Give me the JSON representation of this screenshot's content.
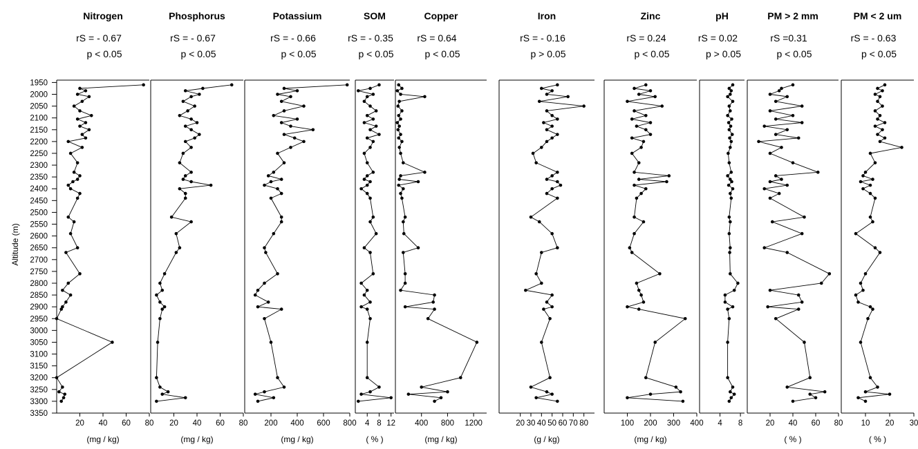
{
  "figure": {
    "y_axis_label": "Altitude  (m)",
    "y_ticks": [
      1950,
      2000,
      2050,
      2100,
      2150,
      2200,
      2250,
      2300,
      2350,
      2400,
      2450,
      2500,
      2550,
      2600,
      2650,
      2700,
      2750,
      2800,
      2850,
      2900,
      2950,
      3000,
      3050,
      3100,
      3150,
      3200,
      3250,
      3300,
      3350
    ],
    "ylim": [
      1940,
      3350
    ],
    "grid": false
  },
  "chart_data": [
    {
      "type": "line",
      "title": "Nitrogen",
      "r_label": "rS = - 0.67",
      "p_label": "p < 0.05",
      "unit_label": "(mg / kg)",
      "xlim": [
        0,
        80
      ],
      "x_ticks": [
        20,
        40,
        60,
        80
      ],
      "x_tick_labels": [
        "20",
        "40",
        "60",
        "80"
      ],
      "x": [
        75,
        20,
        25,
        18,
        28,
        22,
        15,
        20,
        30,
        18,
        25,
        20,
        28,
        22,
        25,
        10,
        22,
        12,
        18,
        15,
        20,
        18,
        14,
        10,
        12,
        20,
        18,
        10,
        15,
        12,
        18,
        8,
        20,
        10,
        5,
        12,
        8,
        5,
        4,
        0,
        48,
        0,
        5,
        2,
        7,
        6,
        4
      ],
      "y": [
        1960,
        1975,
        1985,
        2000,
        2010,
        2030,
        2050,
        2070,
        2090,
        2105,
        2120,
        2135,
        2150,
        2170,
        2185,
        2200,
        2225,
        2250,
        2290,
        2330,
        2345,
        2360,
        2370,
        2385,
        2400,
        2420,
        2440,
        2520,
        2540,
        2590,
        2650,
        2670,
        2760,
        2800,
        2830,
        2850,
        2880,
        2900,
        2910,
        2950,
        3050,
        3200,
        3240,
        3260,
        3270,
        3285,
        3300
      ]
    },
    {
      "type": "line",
      "title": "Phosphorus",
      "r_label": "rS = - 0.67",
      "p_label": "p < 0.05",
      "unit_label": "(mg / kg)",
      "xlim": [
        0,
        80
      ],
      "x_ticks": [
        20,
        40,
        60,
        80
      ],
      "x_tick_labels": [
        "20",
        "40",
        "60",
        "80"
      ],
      "x": [
        70,
        45,
        30,
        42,
        35,
        28,
        38,
        32,
        25,
        35,
        40,
        30,
        35,
        42,
        38,
        30,
        35,
        28,
        25,
        35,
        30,
        28,
        35,
        52,
        25,
        30,
        30,
        18,
        35,
        22,
        25,
        22,
        12,
        8,
        10,
        5,
        8,
        12,
        10,
        8,
        6,
        5,
        8,
        15,
        10,
        30,
        5
      ],
      "y": [
        1960,
        1975,
        1985,
        2000,
        2010,
        2030,
        2050,
        2070,
        2090,
        2105,
        2120,
        2135,
        2150,
        2170,
        2185,
        2200,
        2225,
        2250,
        2290,
        2330,
        2345,
        2360,
        2370,
        2385,
        2400,
        2420,
        2440,
        2520,
        2540,
        2590,
        2650,
        2670,
        2760,
        2800,
        2830,
        2850,
        2880,
        2900,
        2910,
        2950,
        3050,
        3200,
        3240,
        3260,
        3270,
        3285,
        3300
      ]
    },
    {
      "type": "line",
      "title": "Potassium",
      "r_label": "rS = - 0.66",
      "p_label": "p < 0.05",
      "unit_label": "(mg / kg)",
      "xlim": [
        0,
        800
      ],
      "x_ticks": [
        200,
        400,
        600,
        800
      ],
      "x_tick_labels": [
        "200",
        "400",
        "600",
        "800"
      ],
      "x": [
        780,
        300,
        400,
        250,
        350,
        280,
        450,
        300,
        220,
        400,
        280,
        350,
        520,
        300,
        380,
        450,
        350,
        250,
        300,
        220,
        180,
        280,
        200,
        150,
        250,
        280,
        200,
        280,
        280,
        220,
        150,
        160,
        250,
        150,
        100,
        80,
        180,
        100,
        280,
        150,
        200,
        250,
        300,
        150,
        80,
        220,
        100
      ],
      "y": [
        1960,
        1975,
        1985,
        2000,
        2010,
        2030,
        2050,
        2070,
        2090,
        2105,
        2120,
        2135,
        2150,
        2170,
        2185,
        2200,
        2225,
        2250,
        2290,
        2330,
        2345,
        2360,
        2370,
        2385,
        2400,
        2420,
        2440,
        2520,
        2540,
        2590,
        2650,
        2670,
        2760,
        2800,
        2830,
        2850,
        2880,
        2900,
        2910,
        2950,
        3050,
        3200,
        3240,
        3260,
        3270,
        3285,
        3300
      ]
    },
    {
      "type": "line",
      "title": "SOM",
      "r_label": "rS = - 0.35",
      "p_label": "p < 0.05",
      "unit_label": "( % )",
      "xlim": [
        0,
        13
      ],
      "x_ticks": [
        4,
        8,
        12
      ],
      "x_tick_labels": [
        "4",
        "8",
        "12"
      ],
      "x": [
        8,
        5,
        1,
        6,
        4,
        3,
        5,
        7,
        4,
        6,
        3,
        7,
        5,
        8,
        4,
        6,
        5,
        3,
        4,
        6,
        4,
        3,
        5,
        4,
        2,
        4,
        5,
        6,
        5,
        7,
        3,
        5,
        6,
        2,
        4,
        3,
        5,
        2,
        4,
        5,
        4,
        4,
        8,
        5,
        2,
        12,
        1
      ],
      "y": [
        1960,
        1975,
        1985,
        2000,
        2010,
        2030,
        2050,
        2070,
        2090,
        2105,
        2120,
        2135,
        2150,
        2170,
        2185,
        2200,
        2225,
        2250,
        2290,
        2330,
        2345,
        2360,
        2370,
        2385,
        2400,
        2420,
        2440,
        2520,
        2540,
        2590,
        2650,
        2670,
        2760,
        2800,
        2830,
        2850,
        2880,
        2900,
        2910,
        2950,
        3050,
        3200,
        3240,
        3260,
        3270,
        3285,
        3300
      ]
    },
    {
      "type": "line",
      "title": "Copper",
      "r_label": "rS = 0.64",
      "p_label": "p < 0.05",
      "unit_label": "(mg / kg)",
      "xlim": [
        0,
        1400
      ],
      "x_ticks": [
        400,
        800,
        1200
      ],
      "x_tick_labels": [
        "400",
        "800",
        "1200"
      ],
      "x": [
        50,
        100,
        30,
        80,
        450,
        60,
        40,
        100,
        50,
        80,
        30,
        60,
        40,
        80,
        50,
        100,
        60,
        80,
        120,
        450,
        80,
        60,
        350,
        50,
        120,
        80,
        100,
        150,
        120,
        130,
        350,
        120,
        150,
        150,
        80,
        600,
        580,
        150,
        600,
        500,
        1250,
        1000,
        400,
        800,
        200,
        700,
        600
      ],
      "y": [
        1960,
        1975,
        1985,
        2000,
        2010,
        2030,
        2050,
        2070,
        2090,
        2105,
        2120,
        2135,
        2150,
        2170,
        2185,
        2200,
        2225,
        2250,
        2290,
        2330,
        2345,
        2360,
        2370,
        2385,
        2400,
        2420,
        2440,
        2520,
        2540,
        2590,
        2650,
        2670,
        2760,
        2800,
        2830,
        2850,
        2880,
        2900,
        2910,
        2950,
        3050,
        3200,
        3240,
        3260,
        3270,
        3285,
        3300
      ]
    },
    {
      "type": "line",
      "title": "Iron",
      "r_label": "rS = - 0.16",
      "p_label": "p > 0.05",
      "unit_label": "(g / kg)",
      "xlim": [
        0,
        90
      ],
      "x_ticks": [
        20,
        30,
        40,
        50,
        60,
        70,
        80
      ],
      "x_tick_labels": [
        "20",
        "30",
        "40",
        "50",
        "60",
        "70",
        "80"
      ],
      "x": [
        55,
        40,
        50,
        45,
        65,
        38,
        80,
        45,
        50,
        55,
        42,
        50,
        45,
        55,
        50,
        45,
        40,
        32,
        35,
        55,
        50,
        45,
        55,
        58,
        50,
        45,
        55,
        30,
        38,
        50,
        55,
        40,
        35,
        40,
        25,
        50,
        45,
        50,
        42,
        48,
        40,
        48,
        30,
        45,
        50,
        35,
        55
      ],
      "y": [
        1960,
        1975,
        1985,
        2000,
        2010,
        2030,
        2050,
        2070,
        2090,
        2105,
        2120,
        2135,
        2150,
        2170,
        2185,
        2200,
        2225,
        2250,
        2290,
        2330,
        2345,
        2360,
        2370,
        2385,
        2400,
        2420,
        2440,
        2520,
        2540,
        2590,
        2650,
        2670,
        2760,
        2800,
        2830,
        2850,
        2880,
        2900,
        2910,
        2950,
        3050,
        3200,
        3240,
        3260,
        3270,
        3285,
        3300
      ]
    },
    {
      "type": "line",
      "title": "Zinc",
      "r_label": "rS = 0.24",
      "p_label": "p < 0.05",
      "unit_label": "(mg / kg)",
      "xlim": [
        0,
        400
      ],
      "x_ticks": [
        100,
        200,
        300,
        400
      ],
      "x_tick_labels": [
        "100",
        "200",
        "300",
        "400"
      ],
      "x": [
        180,
        130,
        200,
        150,
        220,
        100,
        250,
        130,
        180,
        120,
        200,
        140,
        180,
        200,
        120,
        170,
        160,
        120,
        150,
        130,
        280,
        150,
        270,
        130,
        180,
        160,
        140,
        130,
        170,
        130,
        110,
        120,
        240,
        140,
        150,
        160,
        170,
        100,
        150,
        350,
        220,
        180,
        310,
        330,
        200,
        100,
        340
      ],
      "y": [
        1960,
        1975,
        1985,
        2000,
        2010,
        2030,
        2050,
        2070,
        2090,
        2105,
        2120,
        2135,
        2150,
        2170,
        2185,
        2200,
        2225,
        2250,
        2290,
        2330,
        2345,
        2360,
        2370,
        2385,
        2400,
        2420,
        2440,
        2520,
        2540,
        2590,
        2650,
        2670,
        2760,
        2800,
        2830,
        2850,
        2880,
        2900,
        2910,
        2950,
        3050,
        3200,
        3240,
        3260,
        3270,
        3285,
        3300
      ]
    },
    {
      "type": "line",
      "title": "pH",
      "r_label": "rS = 0.02",
      "p_label": "p > 0.05",
      "unit_label": "",
      "xlim": [
        0,
        8.8
      ],
      "x_ticks": [
        4,
        8
      ],
      "x_tick_labels": [
        "4",
        "8"
      ],
      "x": [
        6.5,
        5.8,
        6.2,
        6.0,
        5.5,
        6.5,
        5.8,
        6.0,
        5.5,
        6.3,
        5.7,
        6.1,
        5.8,
        6.4,
        5.9,
        6.2,
        6.0,
        5.6,
        5.8,
        6.2,
        5.5,
        6.0,
        6.3,
        5.7,
        6.5,
        6.0,
        6.2,
        5.8,
        6.0,
        5.8,
        6.0,
        5.9,
        6.0,
        7.5,
        6.8,
        5.0,
        5.0,
        6.5,
        5.5,
        5.8,
        5.5,
        5.5,
        6.5,
        6.0,
        6.8,
        6.2,
        5.8
      ],
      "y": [
        1960,
        1975,
        1985,
        2000,
        2010,
        2030,
        2050,
        2070,
        2090,
        2105,
        2120,
        2135,
        2150,
        2170,
        2185,
        2200,
        2225,
        2250,
        2290,
        2330,
        2345,
        2360,
        2370,
        2385,
        2400,
        2420,
        2440,
        2520,
        2540,
        2590,
        2650,
        2670,
        2760,
        2800,
        2830,
        2850,
        2880,
        2900,
        2910,
        2950,
        3050,
        3200,
        3240,
        3260,
        3270,
        3285,
        3300
      ]
    },
    {
      "type": "line",
      "title": "PM > 2 mm",
      "r_label": "rS =0.31",
      "p_label": "p < 0.05",
      "unit_label": "( % )",
      "xlim": [
        0,
        80
      ],
      "x_ticks": [
        20,
        40,
        60,
        80
      ],
      "x_tick_labels": [
        "20",
        "40",
        "60",
        "80"
      ],
      "x": [
        40,
        30,
        28,
        20,
        35,
        25,
        48,
        20,
        40,
        25,
        48,
        15,
        35,
        25,
        45,
        10,
        30,
        20,
        40,
        62,
        25,
        30,
        20,
        35,
        15,
        28,
        20,
        50,
        22,
        48,
        15,
        35,
        72,
        65,
        20,
        45,
        48,
        18,
        45,
        25,
        50,
        55,
        35,
        68,
        55,
        60,
        40
      ],
      "y": [
        1960,
        1975,
        1985,
        2000,
        2010,
        2030,
        2050,
        2070,
        2090,
        2105,
        2120,
        2135,
        2150,
        2170,
        2185,
        2200,
        2225,
        2250,
        2290,
        2330,
        2345,
        2360,
        2370,
        2385,
        2400,
        2420,
        2440,
        2520,
        2540,
        2590,
        2650,
        2670,
        2760,
        2800,
        2830,
        2850,
        2880,
        2900,
        2910,
        2950,
        3050,
        3200,
        3240,
        3260,
        3270,
        3285,
        3300
      ]
    },
    {
      "type": "line",
      "title": "PM < 2 um",
      "r_label": "rS = - 0.63",
      "p_label": "p < 0.05",
      "unit_label": "( % )",
      "xlim": [
        0,
        30
      ],
      "x_ticks": [
        10,
        20,
        30
      ],
      "x_tick_labels": [
        "10",
        "20",
        "30"
      ],
      "x": [
        18,
        15,
        17,
        14,
        16,
        15,
        17,
        14,
        16,
        15,
        18,
        14,
        17,
        15,
        18,
        16,
        25,
        12,
        14,
        10,
        9,
        13,
        8,
        12,
        9,
        12,
        14,
        12,
        13,
        6,
        14,
        16,
        10,
        8,
        9,
        6,
        7,
        12,
        13,
        11,
        8,
        12,
        15,
        10,
        20,
        7,
        10
      ],
      "y": [
        1960,
        1975,
        1985,
        2000,
        2010,
        2030,
        2050,
        2070,
        2090,
        2105,
        2120,
        2135,
        2150,
        2170,
        2185,
        2200,
        2225,
        2250,
        2290,
        2330,
        2345,
        2360,
        2370,
        2385,
        2400,
        2420,
        2440,
        2520,
        2540,
        2590,
        2650,
        2670,
        2760,
        2800,
        2830,
        2850,
        2880,
        2900,
        2910,
        2950,
        3050,
        3200,
        3240,
        3260,
        3270,
        3285,
        3300
      ]
    }
  ]
}
